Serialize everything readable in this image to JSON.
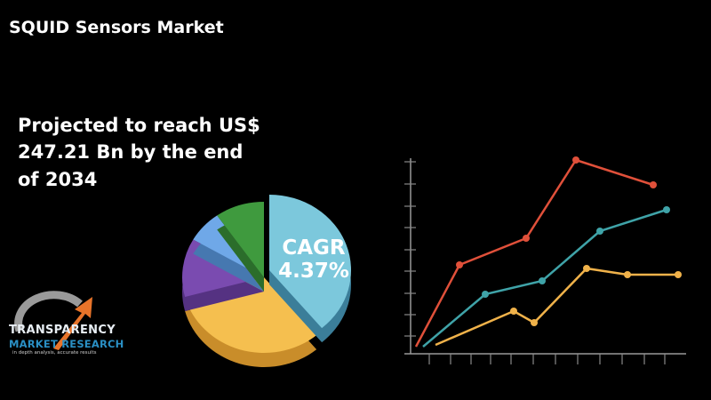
{
  "header": {
    "title": "SQUID Sensors Market"
  },
  "headline": "Projected to reach US$ 247.21 Bn by the end of 2034",
  "cagr": {
    "label": "CAGR",
    "value": "4.37%"
  },
  "logo": {
    "name": "TRANSPARENCY",
    "subname": "MARKET RESEARCH",
    "tagline": "in depth analysis, accurate results"
  }
}
